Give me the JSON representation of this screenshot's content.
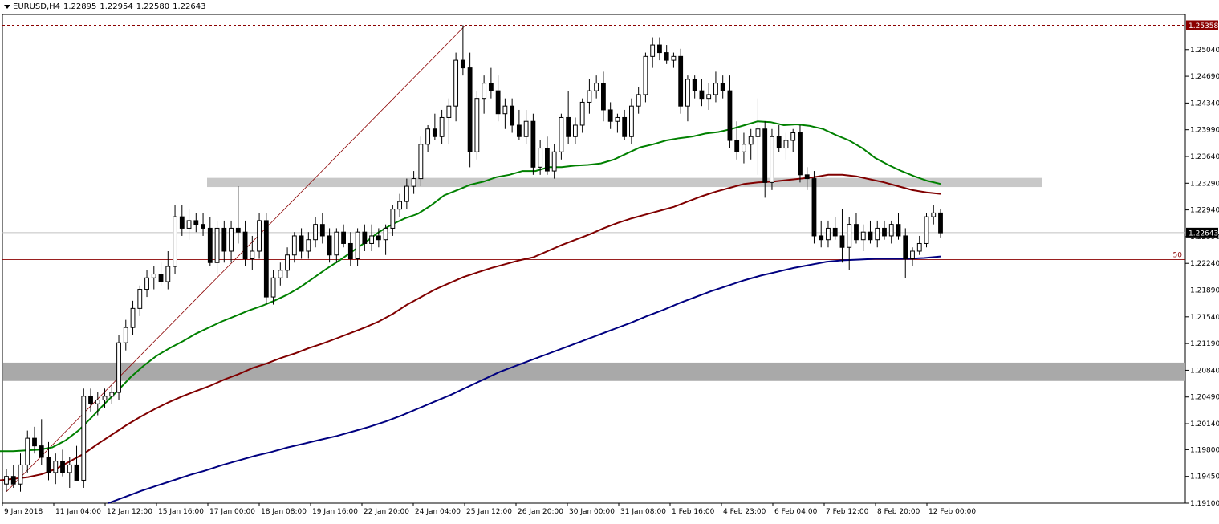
{
  "header": {
    "symbol": "EURUSD,H4",
    "open": "1.22895",
    "high": "1.22954",
    "low": "1.22580",
    "close": "1.22643"
  },
  "chart_data": {
    "type": "candlestick",
    "symbol": "EURUSD",
    "timeframe": "H4",
    "ylim": [
      1.191,
      1.255
    ],
    "y_ticks": [
      "1.25040",
      "1.24690",
      "1.24340",
      "1.23990",
      "1.23640",
      "1.23290",
      "1.22940",
      "1.22590",
      "1.22240",
      "1.21890",
      "1.21540",
      "1.21190",
      "1.20840",
      "1.20490",
      "1.20140",
      "1.19800",
      "1.19450",
      "1.19100"
    ],
    "x_ticks": [
      "9 Jan 2018",
      "11 Jan 04:00",
      "12 Jan 12:00",
      "15 Jan 16:00",
      "17 Jan 00:00",
      "18 Jan 08:00",
      "19 Jan 16:00",
      "22 Jan 20:00",
      "24 Jan 04:00",
      "25 Jan 12:00",
      "26 Jan 20:00",
      "30 Jan 00:00",
      "31 Jan 08:00",
      "1 Feb 16:00",
      "4 Feb 23:00",
      "6 Feb 04:00",
      "7 Feb 12:00",
      "8 Feb 20:00",
      "12 Feb 00:00"
    ],
    "price_labels": {
      "high_line": {
        "value": 1.25358,
        "label": "1.25358",
        "color": "#8b0000"
      },
      "current": {
        "value": 1.22643,
        "label": "1.22643"
      },
      "fib_50": {
        "value": 1.2229,
        "label": "50",
        "color": "#8b0000"
      }
    },
    "zones": [
      {
        "low": 1.2324,
        "high": 1.2336,
        "color": "#c8c8c8"
      },
      {
        "low": 1.207,
        "high": 1.2094,
        "color": "#a9a9a9"
      }
    ],
    "candles": [
      [
        1.1935,
        1.1955,
        1.1925,
        1.1945
      ],
      [
        1.1945,
        1.196,
        1.193,
        1.1935
      ],
      [
        1.1935,
        1.1975,
        1.1925,
        1.196
      ],
      [
        1.196,
        1.2005,
        1.195,
        1.1995
      ],
      [
        1.1995,
        1.201,
        1.1975,
        1.1985
      ],
      [
        1.1985,
        1.202,
        1.196,
        1.197
      ],
      [
        1.197,
        1.199,
        1.194,
        1.195
      ],
      [
        1.195,
        1.1975,
        1.1935,
        1.1965
      ],
      [
        1.1965,
        1.198,
        1.1945,
        1.195
      ],
      [
        1.195,
        1.197,
        1.193,
        1.196
      ],
      [
        1.196,
        1.1985,
        1.1945,
        1.194
      ],
      [
        1.194,
        1.206,
        1.193,
        1.205
      ],
      [
        1.205,
        1.206,
        1.203,
        1.204
      ],
      [
        1.204,
        1.2055,
        1.2025,
        1.2045
      ],
      [
        1.2045,
        1.206,
        1.2035,
        1.205
      ],
      [
        1.205,
        1.2065,
        1.204,
        1.2055
      ],
      [
        1.2055,
        1.213,
        1.2045,
        1.212
      ],
      [
        1.212,
        1.215,
        1.211,
        1.214
      ],
      [
        1.214,
        1.2175,
        1.213,
        1.2165
      ],
      [
        1.2165,
        1.2195,
        1.2155,
        1.219
      ],
      [
        1.219,
        1.2215,
        1.218,
        1.2205
      ],
      [
        1.2205,
        1.222,
        1.219,
        1.221
      ],
      [
        1.221,
        1.2225,
        1.2195,
        1.22
      ],
      [
        1.22,
        1.224,
        1.219,
        1.222
      ],
      [
        1.222,
        1.23,
        1.221,
        1.2285
      ],
      [
        1.2285,
        1.23,
        1.226,
        1.227
      ],
      [
        1.227,
        1.2295,
        1.2255,
        1.228
      ],
      [
        1.228,
        1.229,
        1.2265,
        1.2275
      ],
      [
        1.2275,
        1.229,
        1.226,
        1.227
      ],
      [
        1.227,
        1.2285,
        1.222,
        1.2225
      ],
      [
        1.2225,
        1.228,
        1.221,
        1.227
      ],
      [
        1.227,
        1.228,
        1.2225,
        1.224
      ],
      [
        1.224,
        1.228,
        1.2225,
        1.227
      ],
      [
        1.227,
        1.2325,
        1.225,
        1.2265
      ],
      [
        1.2265,
        1.228,
        1.222,
        1.223
      ],
      [
        1.223,
        1.226,
        1.2215,
        1.224
      ],
      [
        1.224,
        1.229,
        1.223,
        1.228
      ],
      [
        1.228,
        1.229,
        1.217,
        1.218
      ],
      [
        1.218,
        1.2215,
        1.217,
        1.2205
      ],
      [
        1.2205,
        1.2225,
        1.2195,
        1.2215
      ],
      [
        1.2215,
        1.2245,
        1.2205,
        1.2235
      ],
      [
        1.2235,
        1.2265,
        1.2225,
        1.226
      ],
      [
        1.226,
        1.227,
        1.223,
        1.224
      ],
      [
        1.224,
        1.2265,
        1.223,
        1.2255
      ],
      [
        1.2255,
        1.2285,
        1.2245,
        1.2275
      ],
      [
        1.2275,
        1.229,
        1.225,
        1.226
      ],
      [
        1.226,
        1.227,
        1.2225,
        1.2235
      ],
      [
        1.2235,
        1.227,
        1.2225,
        1.2265
      ],
      [
        1.2265,
        1.2275,
        1.2245,
        1.225
      ],
      [
        1.225,
        1.2265,
        1.222,
        1.223
      ],
      [
        1.223,
        1.227,
        1.222,
        1.2265
      ],
      [
        1.2265,
        1.2275,
        1.224,
        1.225
      ],
      [
        1.225,
        1.2275,
        1.224,
        1.226
      ],
      [
        1.226,
        1.227,
        1.2245,
        1.2255
      ],
      [
        1.2255,
        1.2275,
        1.2235,
        1.227
      ],
      [
        1.227,
        1.23,
        1.226,
        1.2295
      ],
      [
        1.2295,
        1.2315,
        1.2285,
        1.2305
      ],
      [
        1.2305,
        1.2335,
        1.2295,
        1.2325
      ],
      [
        1.2325,
        1.2345,
        1.2315,
        1.2335
      ],
      [
        1.2335,
        1.239,
        1.2325,
        1.238
      ],
      [
        1.238,
        1.2405,
        1.237,
        1.24
      ],
      [
        1.24,
        1.242,
        1.2385,
        1.239
      ],
      [
        1.239,
        1.2425,
        1.238,
        1.2415
      ],
      [
        1.2415,
        1.244,
        1.238,
        1.243
      ],
      [
        1.243,
        1.25,
        1.241,
        1.249
      ],
      [
        1.249,
        1.2536,
        1.247,
        1.248
      ],
      [
        1.248,
        1.25,
        1.235,
        1.237
      ],
      [
        1.237,
        1.245,
        1.236,
        1.244
      ],
      [
        1.244,
        1.247,
        1.242,
        1.246
      ],
      [
        1.246,
        1.248,
        1.244,
        1.245
      ],
      [
        1.245,
        1.247,
        1.241,
        1.242
      ],
      [
        1.242,
        1.244,
        1.24,
        1.243
      ],
      [
        1.243,
        1.244,
        1.2395,
        1.2405
      ],
      [
        1.2405,
        1.2425,
        1.2385,
        1.239
      ],
      [
        1.239,
        1.2425,
        1.238,
        1.241
      ],
      [
        1.241,
        1.242,
        1.234,
        1.235
      ],
      [
        1.235,
        1.2385,
        1.234,
        1.2375
      ],
      [
        1.2375,
        1.239,
        1.234,
        1.2345
      ],
      [
        1.2345,
        1.238,
        1.2335,
        1.237
      ],
      [
        1.237,
        1.242,
        1.236,
        1.2415
      ],
      [
        1.2415,
        1.245,
        1.238,
        1.239
      ],
      [
        1.239,
        1.2415,
        1.238,
        1.2405
      ],
      [
        1.2405,
        1.244,
        1.2395,
        1.2435
      ],
      [
        1.2435,
        1.2465,
        1.242,
        1.245
      ],
      [
        1.245,
        1.247,
        1.244,
        1.246
      ],
      [
        1.246,
        1.2475,
        1.241,
        1.2425
      ],
      [
        1.2425,
        1.2435,
        1.24,
        1.241
      ],
      [
        1.241,
        1.242,
        1.2395,
        1.2415
      ],
      [
        1.2415,
        1.2425,
        1.2385,
        1.239
      ],
      [
        1.239,
        1.244,
        1.238,
        1.243
      ],
      [
        1.243,
        1.2455,
        1.242,
        1.2445
      ],
      [
        1.2445,
        1.25,
        1.2435,
        1.2495
      ],
      [
        1.2495,
        1.252,
        1.248,
        1.251
      ],
      [
        1.251,
        1.252,
        1.249,
        1.25
      ],
      [
        1.25,
        1.251,
        1.2485,
        1.249
      ],
      [
        1.249,
        1.25,
        1.248,
        1.2495
      ],
      [
        1.2495,
        1.2505,
        1.242,
        1.243
      ],
      [
        1.243,
        1.247,
        1.241,
        1.2465
      ],
      [
        1.2465,
        1.247,
        1.244,
        1.245
      ],
      [
        1.245,
        1.2465,
        1.243,
        1.244
      ],
      [
        1.244,
        1.246,
        1.2425,
        1.2445
      ],
      [
        1.2445,
        1.2475,
        1.2435,
        1.246
      ],
      [
        1.246,
        1.247,
        1.244,
        1.245
      ],
      [
        1.245,
        1.247,
        1.2375,
        1.2385
      ],
      [
        1.2385,
        1.241,
        1.236,
        1.237
      ],
      [
        1.237,
        1.2395,
        1.2355,
        1.238
      ],
      [
        1.238,
        1.24,
        1.236,
        1.239
      ],
      [
        1.239,
        1.244,
        1.234,
        1.24
      ],
      [
        1.24,
        1.241,
        1.231,
        1.233
      ],
      [
        1.233,
        1.24,
        1.232,
        1.239
      ],
      [
        1.239,
        1.2405,
        1.237,
        1.2375
      ],
      [
        1.2375,
        1.2395,
        1.236,
        1.2385
      ],
      [
        1.2385,
        1.24,
        1.237,
        1.2395
      ],
      [
        1.2395,
        1.2405,
        1.233,
        1.234
      ],
      [
        1.234,
        1.235,
        1.232,
        1.2335
      ],
      [
        1.2335,
        1.2345,
        1.225,
        1.226
      ],
      [
        1.226,
        1.228,
        1.2245,
        1.2255
      ],
      [
        1.2255,
        1.228,
        1.2245,
        1.227
      ],
      [
        1.227,
        1.2285,
        1.2255,
        1.226
      ],
      [
        1.226,
        1.2295,
        1.2225,
        1.2245
      ],
      [
        1.2245,
        1.2285,
        1.2215,
        1.2275
      ],
      [
        1.2275,
        1.229,
        1.225,
        1.2255
      ],
      [
        1.2255,
        1.2275,
        1.224,
        1.2265
      ],
      [
        1.2265,
        1.228,
        1.225,
        1.2255
      ],
      [
        1.2255,
        1.228,
        1.2245,
        1.227
      ],
      [
        1.227,
        1.228,
        1.2255,
        1.226
      ],
      [
        1.226,
        1.228,
        1.225,
        1.2275
      ],
      [
        1.2275,
        1.229,
        1.2255,
        1.226
      ],
      [
        1.226,
        1.227,
        1.2205,
        1.223
      ],
      [
        1.223,
        1.2245,
        1.222,
        1.224
      ],
      [
        1.224,
        1.226,
        1.2235,
        1.225
      ],
      [
        1.225,
        1.229,
        1.2245,
        1.2285
      ],
      [
        1.2285,
        1.23,
        1.2275,
        1.229
      ],
      [
        1.229,
        1.2295,
        1.2258,
        1.2264
      ]
    ],
    "series": [
      {
        "name": "",
        "color": "#008000",
        "values": [
          1.1978,
          1.1978,
          1.1979,
          1.198,
          1.1983,
          1.1992,
          1.2005,
          1.2022,
          1.204,
          1.2057,
          1.2075,
          1.209,
          1.2103,
          1.2113,
          1.2122,
          1.2132,
          1.214,
          1.2148,
          1.2155,
          1.2162,
          1.2168,
          1.2175,
          1.2183,
          1.2193,
          1.2205,
          1.2217,
          1.2228,
          1.224,
          1.2252,
          1.2265,
          1.2275,
          1.2283,
          1.2289,
          1.23,
          1.2313,
          1.232,
          1.2327,
          1.2331,
          1.2337,
          1.234,
          1.2345,
          1.2345,
          1.235,
          1.235,
          1.2352,
          1.2353,
          1.2355,
          1.236,
          1.2368,
          1.2376,
          1.238,
          1.2385,
          1.2388,
          1.239,
          1.2394,
          1.2396,
          1.24,
          1.2405,
          1.241,
          1.2409,
          1.2405,
          1.2406,
          1.2404,
          1.24,
          1.2392,
          1.2385,
          1.2375,
          1.2362,
          1.2353,
          1.2345,
          1.2338,
          1.2332,
          1.2328
        ]
      },
      {
        "name": "",
        "color": "#800000",
        "values": [
          1.194,
          1.1942,
          1.1944,
          1.1948,
          1.1955,
          1.1965,
          1.1975,
          1.1988,
          1.2,
          1.2012,
          1.2023,
          1.2033,
          1.2042,
          1.205,
          1.2057,
          1.2064,
          1.2072,
          1.2079,
          1.2087,
          1.2093,
          1.21,
          1.2106,
          1.2113,
          1.2119,
          1.2126,
          1.2133,
          1.214,
          1.2148,
          1.2158,
          1.217,
          1.218,
          1.219,
          1.2198,
          1.2206,
          1.2212,
          1.2218,
          1.2223,
          1.2228,
          1.2232,
          1.224,
          1.2248,
          1.2255,
          1.2262,
          1.227,
          1.2277,
          1.2283,
          1.2288,
          1.2293,
          1.2298,
          1.2305,
          1.2312,
          1.2318,
          1.2323,
          1.2328,
          1.233,
          1.2331,
          1.2333,
          1.2335,
          1.2337,
          1.234,
          1.234,
          1.2338,
          1.2334,
          1.233,
          1.2325,
          1.232,
          1.2317,
          1.2315
        ]
      },
      {
        "name": "",
        "color": "#000080",
        "values": [
          1.191,
          1.1918,
          1.1926,
          1.1933,
          1.194,
          1.1947,
          1.1953,
          1.196,
          1.1966,
          1.1972,
          1.1977,
          1.1983,
          1.1988,
          1.1993,
          1.1998,
          1.2004,
          1.201,
          1.2017,
          1.2025,
          1.2034,
          1.2043,
          1.2052,
          1.2062,
          1.2072,
          1.2082,
          1.209,
          1.2098,
          1.2106,
          1.2114,
          1.2122,
          1.213,
          1.2138,
          1.2146,
          1.2155,
          1.2163,
          1.2172,
          1.218,
          1.2188,
          1.2195,
          1.2202,
          1.2208,
          1.2213,
          1.2218,
          1.2222,
          1.2226,
          1.2228,
          1.2229,
          1.223,
          1.223,
          1.223,
          1.2231,
          1.2233
        ]
      }
    ]
  }
}
